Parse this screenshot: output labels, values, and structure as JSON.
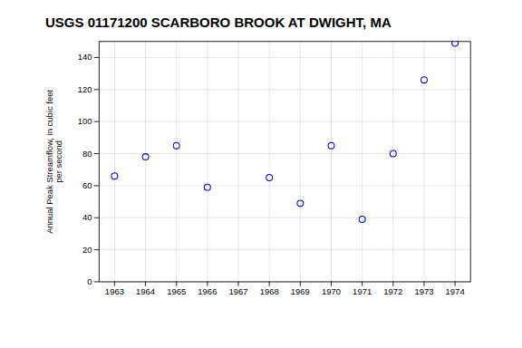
{
  "chart_data": {
    "type": "scatter",
    "title": "USGS 01171200 SCARBORO BROOK AT DWIGHT, MA",
    "ylabel": "Annual Peak Streamflow, in cubic feet\nper second",
    "x": [
      1963,
      1964,
      1965,
      1966,
      1968,
      1969,
      1970,
      1971,
      1972,
      1973,
      1974
    ],
    "values": [
      66,
      78,
      85,
      59,
      65,
      49,
      85,
      39,
      80,
      126,
      149
    ],
    "color": "#0000cc",
    "marker": "circle",
    "xlim": [
      1962.5,
      1974.5
    ],
    "ylim": [
      0,
      150
    ],
    "xticks": [
      1963,
      1964,
      1965,
      1966,
      1967,
      1968,
      1969,
      1970,
      1971,
      1972,
      1973,
      1974
    ],
    "yticks": [
      0,
      20,
      40,
      60,
      80,
      100,
      120,
      140
    ],
    "grid": true
  }
}
